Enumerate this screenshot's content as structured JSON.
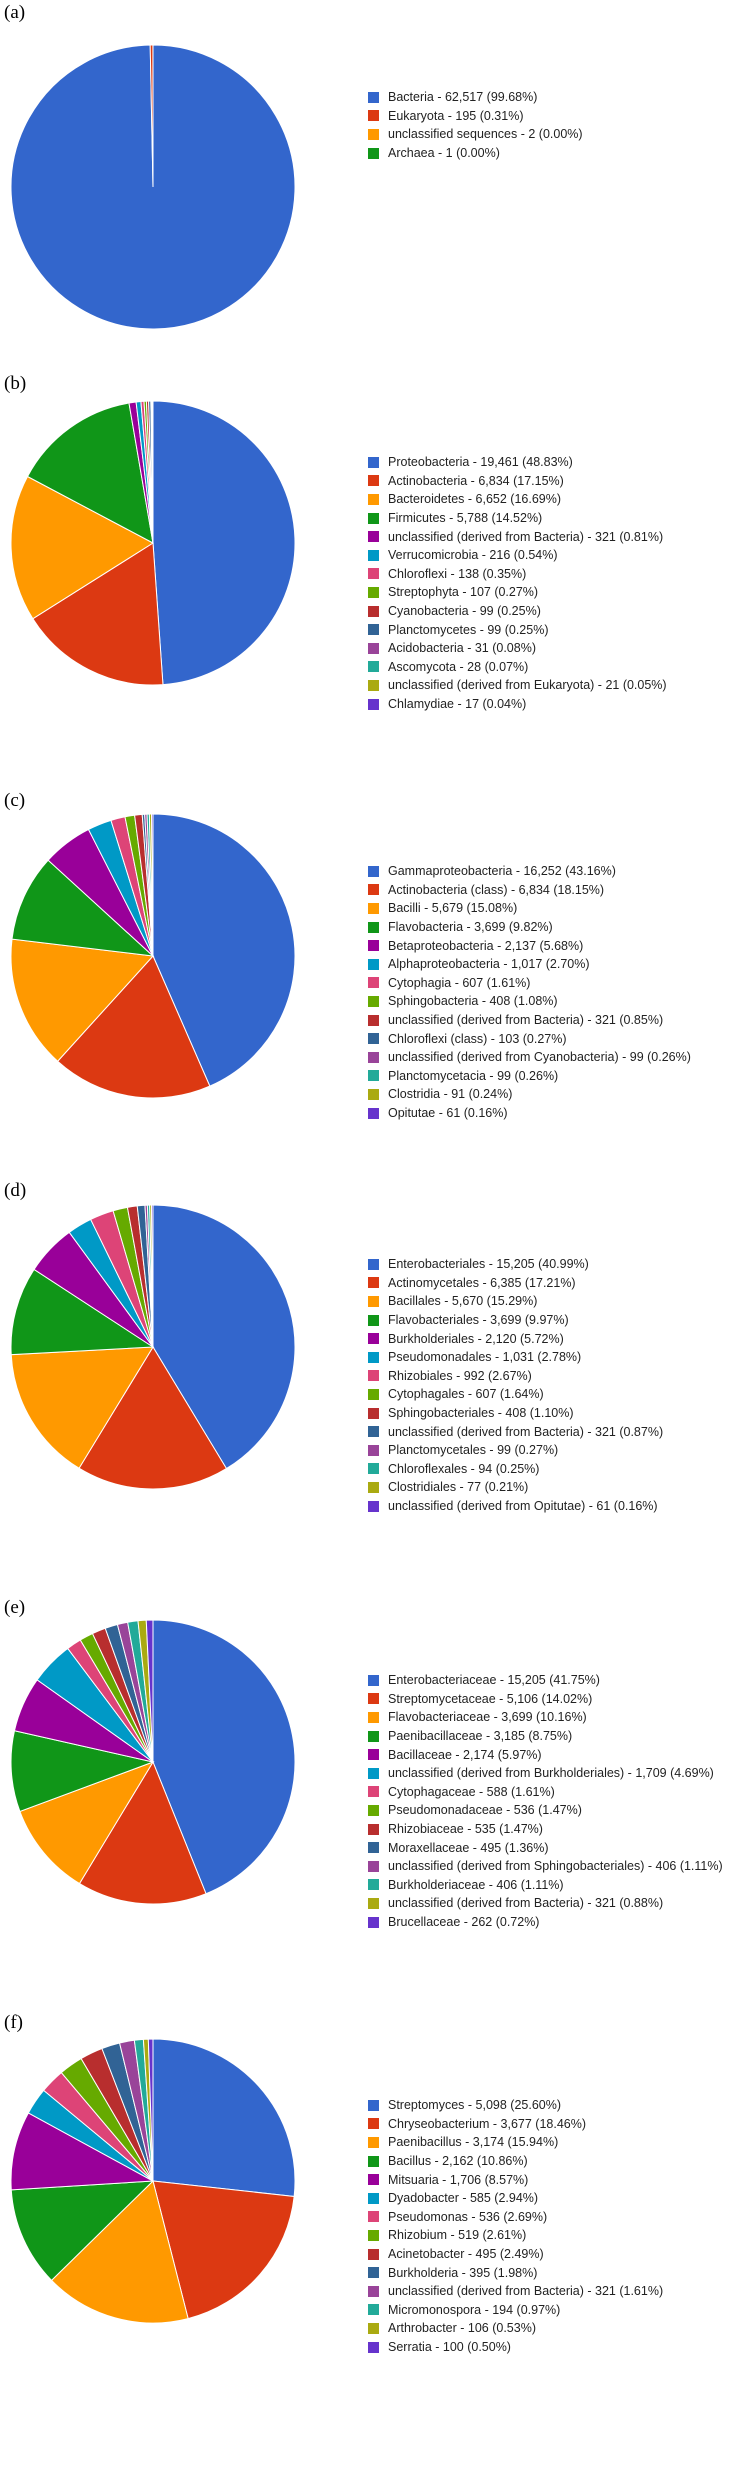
{
  "chart_data": [
    {
      "type": "pie",
      "label": "(a)",
      "slices": [
        {
          "label": "Bacteria - 62,517 (99.68%)",
          "value": 62517,
          "color": "#3366cc"
        },
        {
          "label": "Eukaryota - 195 (0.31%)",
          "value": 195,
          "color": "#dc3912"
        },
        {
          "label": "unclassified sequences - 2 (0.00%)",
          "value": 2,
          "color": "#ff9900"
        },
        {
          "label": "Archaea - 1 (0.00%)",
          "value": 1,
          "color": "#109618"
        }
      ]
    },
    {
      "type": "pie",
      "label": "(b)",
      "slices": [
        {
          "label": "Proteobacteria - 19,461 (48.83%)",
          "value": 19461,
          "color": "#3366cc"
        },
        {
          "label": "Actinobacteria - 6,834 (17.15%)",
          "value": 6834,
          "color": "#dc3912"
        },
        {
          "label": "Bacteroidetes - 6,652 (16.69%)",
          "value": 6652,
          "color": "#ff9900"
        },
        {
          "label": "Firmicutes - 5,788 (14.52%)",
          "value": 5788,
          "color": "#109618"
        },
        {
          "label": "unclassified (derived from Bacteria) - 321 (0.81%)",
          "value": 321,
          "color": "#990099"
        },
        {
          "label": "Verrucomicrobia - 216 (0.54%)",
          "value": 216,
          "color": "#0099c6"
        },
        {
          "label": "Chloroflexi - 138 (0.35%)",
          "value": 138,
          "color": "#dd4477"
        },
        {
          "label": "Streptophyta - 107 (0.27%)",
          "value": 107,
          "color": "#66aa00"
        },
        {
          "label": "Cyanobacteria - 99 (0.25%)",
          "value": 99,
          "color": "#b82e2e"
        },
        {
          "label": "Planctomycetes - 99 (0.25%)",
          "value": 99,
          "color": "#316395"
        },
        {
          "label": "Acidobacteria - 31 (0.08%)",
          "value": 31,
          "color": "#994499"
        },
        {
          "label": "Ascomycota - 28 (0.07%)",
          "value": 28,
          "color": "#22aa99"
        },
        {
          "label": "unclassified (derived from Eukaryota) - 21 (0.05%)",
          "value": 21,
          "color": "#aaaa11"
        },
        {
          "label": "Chlamydiae - 17 (0.04%)",
          "value": 17,
          "color": "#6633cc"
        }
      ]
    },
    {
      "type": "pie",
      "label": "(c)",
      "slices": [
        {
          "label": "Gammaproteobacteria - 16,252 (43.16%)",
          "value": 16252,
          "color": "#3366cc"
        },
        {
          "label": "Actinobacteria (class) - 6,834 (18.15%)",
          "value": 6834,
          "color": "#dc3912"
        },
        {
          "label": "Bacilli - 5,679 (15.08%)",
          "value": 5679,
          "color": "#ff9900"
        },
        {
          "label": "Flavobacteria - 3,699 (9.82%)",
          "value": 3699,
          "color": "#109618"
        },
        {
          "label": "Betaproteobacteria - 2,137 (5.68%)",
          "value": 2137,
          "color": "#990099"
        },
        {
          "label": "Alphaproteobacteria - 1,017 (2.70%)",
          "value": 1017,
          "color": "#0099c6"
        },
        {
          "label": "Cytophagia - 607 (1.61%)",
          "value": 607,
          "color": "#dd4477"
        },
        {
          "label": "Sphingobacteria - 408 (1.08%)",
          "value": 408,
          "color": "#66aa00"
        },
        {
          "label": "unclassified (derived from Bacteria) - 321 (0.85%)",
          "value": 321,
          "color": "#b82e2e"
        },
        {
          "label": "Chloroflexi (class) - 103 (0.27%)",
          "value": 103,
          "color": "#316395"
        },
        {
          "label": "unclassified (derived from Cyanobacteria) - 99 (0.26%)",
          "value": 99,
          "color": "#994499"
        },
        {
          "label": "Planctomycetacia - 99 (0.26%)",
          "value": 99,
          "color": "#22aa99"
        },
        {
          "label": "Clostridia - 91 (0.24%)",
          "value": 91,
          "color": "#aaaa11"
        },
        {
          "label": "Opitutae - 61 (0.16%)",
          "value": 61,
          "color": "#6633cc"
        }
      ]
    },
    {
      "type": "pie",
      "label": "(d)",
      "slices": [
        {
          "label": "Enterobacteriales - 15,205 (40.99%)",
          "value": 15205,
          "color": "#3366cc"
        },
        {
          "label": "Actinomycetales - 6,385 (17.21%)",
          "value": 6385,
          "color": "#dc3912"
        },
        {
          "label": "Bacillales - 5,670 (15.29%)",
          "value": 5670,
          "color": "#ff9900"
        },
        {
          "label": "Flavobacteriales - 3,699 (9.97%)",
          "value": 3699,
          "color": "#109618"
        },
        {
          "label": "Burkholderiales - 2,120 (5.72%)",
          "value": 2120,
          "color": "#990099"
        },
        {
          "label": "Pseudomonadales - 1,031 (2.78%)",
          "value": 1031,
          "color": "#0099c6"
        },
        {
          "label": "Rhizobiales - 992 (2.67%)",
          "value": 992,
          "color": "#dd4477"
        },
        {
          "label": "Cytophagales - 607 (1.64%)",
          "value": 607,
          "color": "#66aa00"
        },
        {
          "label": "Sphingobacteriales - 408 (1.10%)",
          "value": 408,
          "color": "#b82e2e"
        },
        {
          "label": "unclassified (derived from Bacteria) - 321 (0.87%)",
          "value": 321,
          "color": "#316395"
        },
        {
          "label": "Planctomycetales - 99 (0.27%)",
          "value": 99,
          "color": "#994499"
        },
        {
          "label": "Chloroflexales - 94 (0.25%)",
          "value": 94,
          "color": "#22aa99"
        },
        {
          "label": "Clostridiales - 77 (0.21%)",
          "value": 77,
          "color": "#aaaa11"
        },
        {
          "label": "unclassified (derived from Opitutae) - 61 (0.16%)",
          "value": 61,
          "color": "#6633cc"
        }
      ]
    },
    {
      "type": "pie",
      "label": "(e)",
      "slices": [
        {
          "label": "Enterobacteriaceae - 15,205 (41.75%)",
          "value": 15205,
          "color": "#3366cc"
        },
        {
          "label": "Streptomycetaceae - 5,106 (14.02%)",
          "value": 5106,
          "color": "#dc3912"
        },
        {
          "label": "Flavobacteriaceae - 3,699 (10.16%)",
          "value": 3699,
          "color": "#ff9900"
        },
        {
          "label": "Paenibacillaceae - 3,185 (8.75%)",
          "value": 3185,
          "color": "#109618"
        },
        {
          "label": "Bacillaceae - 2,174 (5.97%)",
          "value": 2174,
          "color": "#990099"
        },
        {
          "label": "unclassified (derived from Burkholderiales) - 1,709 (4.69%)",
          "value": 1709,
          "color": "#0099c6"
        },
        {
          "label": "Cytophagaceae - 588 (1.61%)",
          "value": 588,
          "color": "#dd4477"
        },
        {
          "label": "Pseudomonadaceae - 536 (1.47%)",
          "value": 536,
          "color": "#66aa00"
        },
        {
          "label": "Rhizobiaceae - 535 (1.47%)",
          "value": 535,
          "color": "#b82e2e"
        },
        {
          "label": "Moraxellaceae - 495 (1.36%)",
          "value": 495,
          "color": "#316395"
        },
        {
          "label": "unclassified (derived from Sphingobacteriales) - 406 (1.11%)",
          "value": 406,
          "color": "#994499"
        },
        {
          "label": "Burkholderiaceae - 406 (1.11%)",
          "value": 406,
          "color": "#22aa99"
        },
        {
          "label": "unclassified (derived from Bacteria) - 321 (0.88%)",
          "value": 321,
          "color": "#aaaa11"
        },
        {
          "label": "Brucellaceae - 262 (0.72%)",
          "value": 262,
          "color": "#6633cc"
        }
      ]
    },
    {
      "type": "pie",
      "label": "(f)",
      "slices": [
        {
          "label": "Streptomyces - 5,098 (25.60%)",
          "value": 5098,
          "color": "#3366cc"
        },
        {
          "label": "Chryseobacterium - 3,677 (18.46%)",
          "value": 3677,
          "color": "#dc3912"
        },
        {
          "label": "Paenibacillus - 3,174 (15.94%)",
          "value": 3174,
          "color": "#ff9900"
        },
        {
          "label": "Bacillus - 2,162 (10.86%)",
          "value": 2162,
          "color": "#109618"
        },
        {
          "label": "Mitsuaria - 1,706 (8.57%)",
          "value": 1706,
          "color": "#990099"
        },
        {
          "label": "Dyadobacter - 585 (2.94%)",
          "value": 585,
          "color": "#0099c6"
        },
        {
          "label": "Pseudomonas - 536 (2.69%)",
          "value": 536,
          "color": "#dd4477"
        },
        {
          "label": "Rhizobium - 519 (2.61%)",
          "value": 519,
          "color": "#66aa00"
        },
        {
          "label": "Acinetobacter - 495 (2.49%)",
          "value": 495,
          "color": "#b82e2e"
        },
        {
          "label": "Burkholderia - 395 (1.98%)",
          "value": 395,
          "color": "#316395"
        },
        {
          "label": "unclassified (derived from Bacteria) - 321 (1.61%)",
          "value": 321,
          "color": "#994499"
        },
        {
          "label": "Micromonospora - 194 (0.97%)",
          "value": 194,
          "color": "#22aa99"
        },
        {
          "label": "Arthrobacter - 106 (0.53%)",
          "value": 106,
          "color": "#aaaa11"
        },
        {
          "label": "Serratia - 100 (0.50%)",
          "value": 100,
          "color": "#6633cc"
        }
      ]
    }
  ]
}
